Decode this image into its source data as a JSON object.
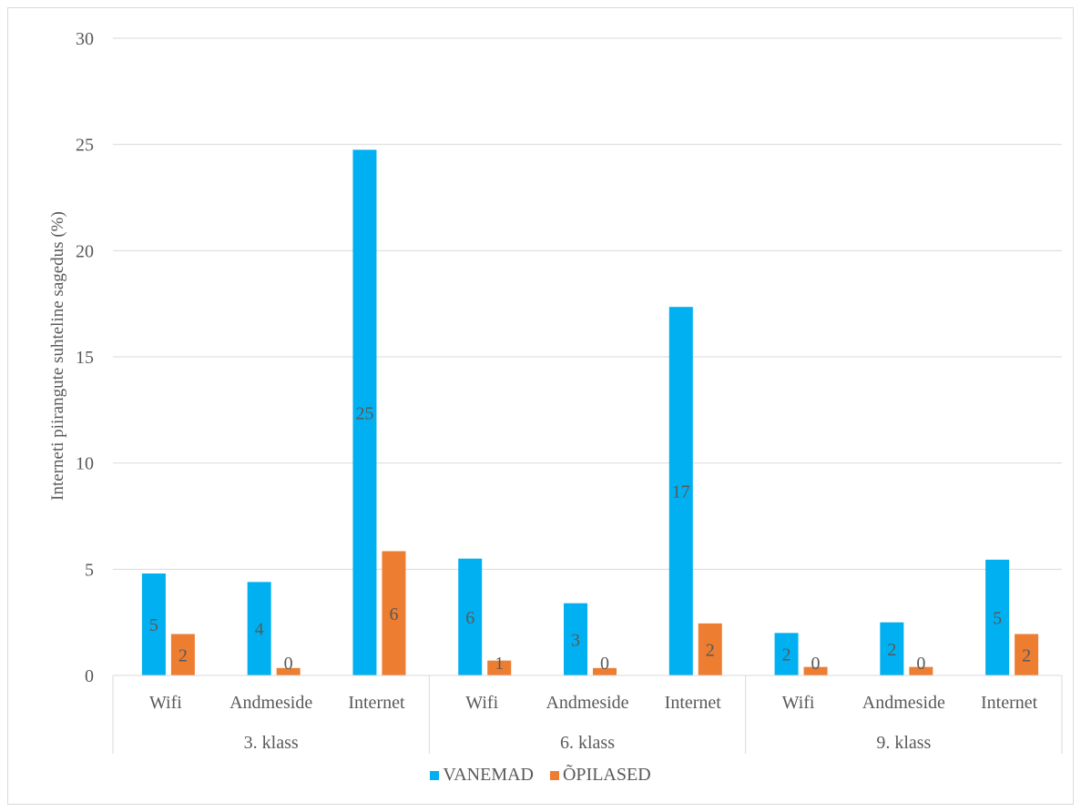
{
  "chart_data": {
    "type": "bar",
    "title": "",
    "xlabel": "",
    "ylabel": "Interneti piirangute suhteline sagedus (%)",
    "ylim": [
      0,
      30
    ],
    "yticks": [
      0,
      5,
      10,
      15,
      20,
      25,
      30
    ],
    "grid": true,
    "legend_position": "bottom",
    "groups": [
      "3. klass",
      "6. klass",
      "9. klass"
    ],
    "categories": [
      "Wifi",
      "Andmeside",
      "Internet",
      "Wifi",
      "Andmeside",
      "Internet",
      "Wifi",
      "Andmeside",
      "Internet"
    ],
    "series": [
      {
        "name": "VANEMAD",
        "color": "#00b0f0",
        "values": [
          4.8,
          4.4,
          24.75,
          5.5,
          3.4,
          17.35,
          2.0,
          2.5,
          5.45
        ],
        "labels": [
          "5",
          "4",
          "25",
          "6",
          "3",
          "17",
          "2",
          "2",
          "5"
        ]
      },
      {
        "name": "ÕPILASED",
        "color": "#ed7d31",
        "values": [
          1.95,
          0.35,
          5.85,
          0.7,
          0.35,
          2.45,
          0.4,
          0.4,
          1.95
        ],
        "labels": [
          "2",
          "0",
          "6",
          "1",
          "0",
          "2",
          "0",
          "0",
          "2"
        ]
      }
    ]
  }
}
